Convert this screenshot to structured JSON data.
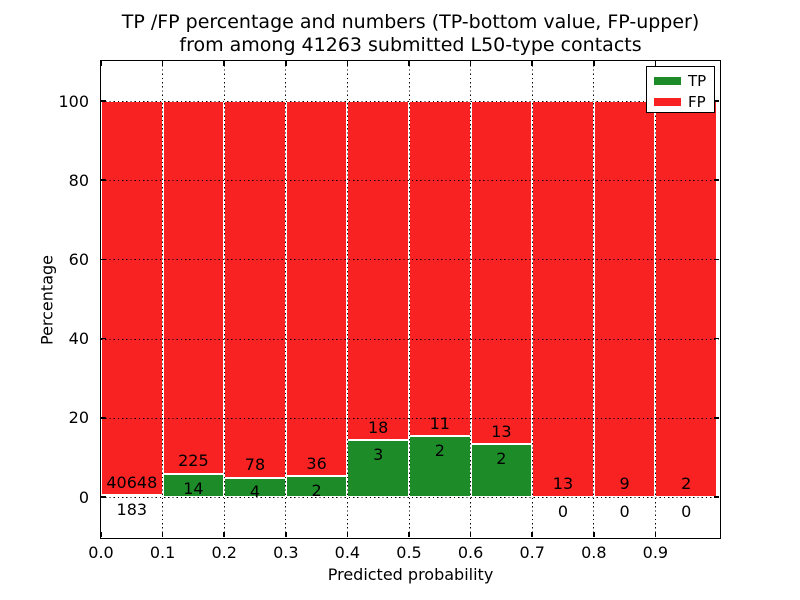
{
  "chart_data": {
    "type": "bar",
    "stacked": true,
    "title_line1": "TP /FP percentage and numbers (TP-bottom value, FP-upper)",
    "title_line2": "from among 41263 submitted L50-type contacts",
    "xlabel": "Predicted probability",
    "ylabel": "Percentage",
    "bin_edges": [
      0.0,
      0.1,
      0.2,
      0.3,
      0.4,
      0.5,
      0.6,
      0.7,
      0.8,
      0.9,
      1.0
    ],
    "x_tick_values": [
      0.0,
      0.1,
      0.2,
      0.3,
      0.4,
      0.5,
      0.6,
      0.7,
      0.8,
      0.9
    ],
    "x_tick_labels": [
      "0.0",
      "0.1",
      "0.2",
      "0.3",
      "0.4",
      "0.5",
      "0.6",
      "0.7",
      "0.8",
      "0.9"
    ],
    "y_tick_values": [
      0,
      20,
      40,
      60,
      80,
      100
    ],
    "y_tick_labels": [
      "0",
      "20",
      "40",
      "60",
      "80",
      "100"
    ],
    "xlim": [
      0,
      1.007
    ],
    "ylim": [
      -10.5,
      110.5
    ],
    "grid": "dotted black, drawn over bars",
    "colors": {
      "tp": "#1e8b29",
      "fp": "#f92222"
    },
    "legend": {
      "position": "upper right",
      "entries": [
        {
          "label": "TP",
          "color": "#1e8b29"
        },
        {
          "label": "FP",
          "color": "#f92222"
        }
      ]
    },
    "series": [
      {
        "name": "TP",
        "role": "bottom value",
        "color": "#1e8b29",
        "counts": [
          183,
          14,
          4,
          2,
          3,
          2,
          2,
          0,
          0,
          0
        ],
        "pct": [
          0.448,
          5.858,
          4.878,
          5.263,
          14.286,
          15.385,
          13.333,
          0,
          0,
          0
        ]
      },
      {
        "name": "FP",
        "role": "upper value",
        "color": "#f92222",
        "counts": [
          40648,
          225,
          78,
          36,
          18,
          11,
          13,
          13,
          9,
          2
        ],
        "pct": [
          99.552,
          94.142,
          95.122,
          94.737,
          85.714,
          84.615,
          86.667,
          100,
          100,
          100
        ]
      }
    ]
  }
}
